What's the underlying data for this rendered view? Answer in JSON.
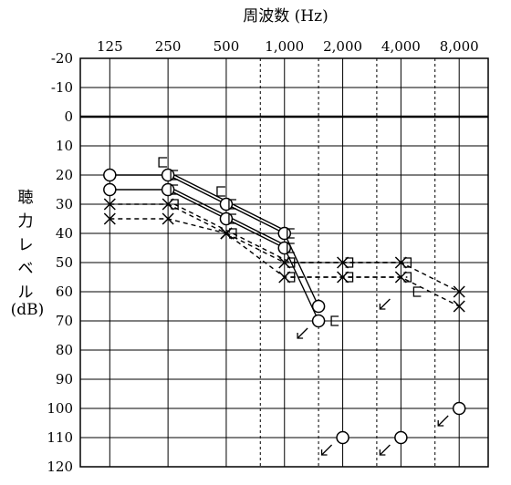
{
  "chart_data": {
    "type": "line",
    "xlabel": "周波数 (Hz)",
    "ylabel_chars": [
      "聴",
      "力",
      "レ",
      "ベ",
      "ル"
    ],
    "ylabel_unit": "(dB)",
    "x_ticks": [
      {
        "hz": 125,
        "label": "125"
      },
      {
        "hz": 250,
        "label": "250"
      },
      {
        "hz": 500,
        "label": "500"
      },
      {
        "hz": 1000,
        "label": "1,000"
      },
      {
        "hz": 2000,
        "label": "2,000"
      },
      {
        "hz": 4000,
        "label": "4,000"
      },
      {
        "hz": 8000,
        "label": "8,000"
      }
    ],
    "x_dashed": [
      750,
      1500,
      3000,
      6000
    ],
    "x_range_hz": [
      88,
      11300
    ],
    "y_ticks": [
      -20,
      -10,
      0,
      10,
      20,
      30,
      40,
      50,
      60,
      70,
      80,
      90,
      100,
      110,
      120
    ],
    "y_range_db": [
      -20,
      120
    ],
    "y_reversed": true,
    "series": [
      {
        "style": "solid",
        "color": "#000000",
        "points": [
          {
            "hz": 125,
            "db": 20,
            "marker": "circle"
          },
          {
            "hz": 250,
            "db": 20,
            "marker": "circle"
          },
          {
            "hz": 500,
            "db": 30,
            "marker": "circle"
          },
          {
            "hz": 1000,
            "db": 40,
            "marker": "circle"
          },
          {
            "hz": 1500,
            "db": 65,
            "marker": "circle"
          }
        ]
      },
      {
        "style": "solid",
        "color": "#000000",
        "points": [
          {
            "hz": 125,
            "db": 25,
            "marker": "circle"
          },
          {
            "hz": 250,
            "db": 25,
            "marker": "circle"
          },
          {
            "hz": 500,
            "db": 35,
            "marker": "circle"
          },
          {
            "hz": 1000,
            "db": 45,
            "marker": "circle"
          },
          {
            "hz": 1500,
            "db": 70,
            "marker": "circle"
          }
        ]
      },
      {
        "style": "dashed",
        "color": "#000000",
        "points": [
          {
            "hz": 125,
            "db": 30,
            "marker": "cross"
          },
          {
            "hz": 250,
            "db": 30,
            "marker": "cross"
          },
          {
            "hz": 500,
            "db": 40,
            "marker": "cross"
          },
          {
            "hz": 1000,
            "db": 50,
            "marker": "cross"
          },
          {
            "hz": 2000,
            "db": 50,
            "marker": "cross"
          },
          {
            "hz": 4000,
            "db": 50,
            "marker": "cross"
          },
          {
            "hz": 8000,
            "db": 60,
            "marker": "cross"
          }
        ]
      },
      {
        "style": "dashed",
        "color": "#000000",
        "points": [
          {
            "hz": 125,
            "db": 35,
            "marker": "cross"
          },
          {
            "hz": 250,
            "db": 35,
            "marker": "cross"
          },
          {
            "hz": 500,
            "db": 40,
            "marker": "cross"
          },
          {
            "hz": 1000,
            "db": 55,
            "marker": "cross"
          },
          {
            "hz": 2000,
            "db": 55,
            "marker": "cross"
          },
          {
            "hz": 4000,
            "db": 55,
            "marker": "cross"
          },
          {
            "hz": 8000,
            "db": 65,
            "marker": "cross"
          }
        ]
      },
      {
        "style": "solid",
        "color": "#000000",
        "points": [
          {
            "hz": 250,
            "db": 20,
            "marker": "bracket-right"
          },
          {
            "hz": 500,
            "db": 30,
            "marker": "bracket-right"
          },
          {
            "hz": 1000,
            "db": 40,
            "marker": "bracket-right"
          }
        ]
      },
      {
        "style": "solid",
        "color": "#000000",
        "points": [
          {
            "hz": 250,
            "db": 25,
            "marker": "bracket-right"
          },
          {
            "hz": 500,
            "db": 35,
            "marker": "bracket-right"
          },
          {
            "hz": 1000,
            "db": 45,
            "marker": "bracket-right"
          }
        ]
      },
      {
        "style": "dashed",
        "color": "#000000",
        "points": [
          {
            "hz": 250,
            "db": 30,
            "marker": "bracket-left"
          },
          {
            "hz": 500,
            "db": 40,
            "marker": "bracket-left"
          },
          {
            "hz": 1000,
            "db": 50,
            "marker": "bracket-left"
          },
          {
            "hz": 2000,
            "db": 50,
            "marker": "bracket-left"
          },
          {
            "hz": 4000,
            "db": 50,
            "marker": "bracket-left"
          }
        ]
      },
      {
        "style": "dashed",
        "color": "#000000",
        "points": [
          {
            "hz": 1000,
            "db": 55,
            "marker": "bracket-left"
          },
          {
            "hz": 2000,
            "db": 55,
            "marker": "bracket-left"
          },
          {
            "hz": 4000,
            "db": 55,
            "marker": "bracket-left"
          }
        ]
      }
    ],
    "standalone_markers": [
      {
        "hz": 250,
        "db": 15,
        "marker": "bracket-right"
      },
      {
        "hz": 500,
        "db": 25,
        "marker": "bracket-right"
      },
      {
        "hz": 1500,
        "db": 70,
        "marker": "bracket-right-small"
      },
      {
        "hz": 4000,
        "db": 60,
        "marker": "bracket-right-small"
      },
      {
        "hz": 2000,
        "db": 110,
        "marker": "circle"
      },
      {
        "hz": 4000,
        "db": 110,
        "marker": "circle"
      },
      {
        "hz": 8000,
        "db": 100,
        "marker": "circle"
      }
    ],
    "scale_out_arrows": [
      {
        "hz": 1500,
        "db": 70
      },
      {
        "hz": 4000,
        "db": 60
      },
      {
        "hz": 2000,
        "db": 110
      },
      {
        "hz": 4000,
        "db": 110
      },
      {
        "hz": 8000,
        "db": 100
      }
    ]
  }
}
